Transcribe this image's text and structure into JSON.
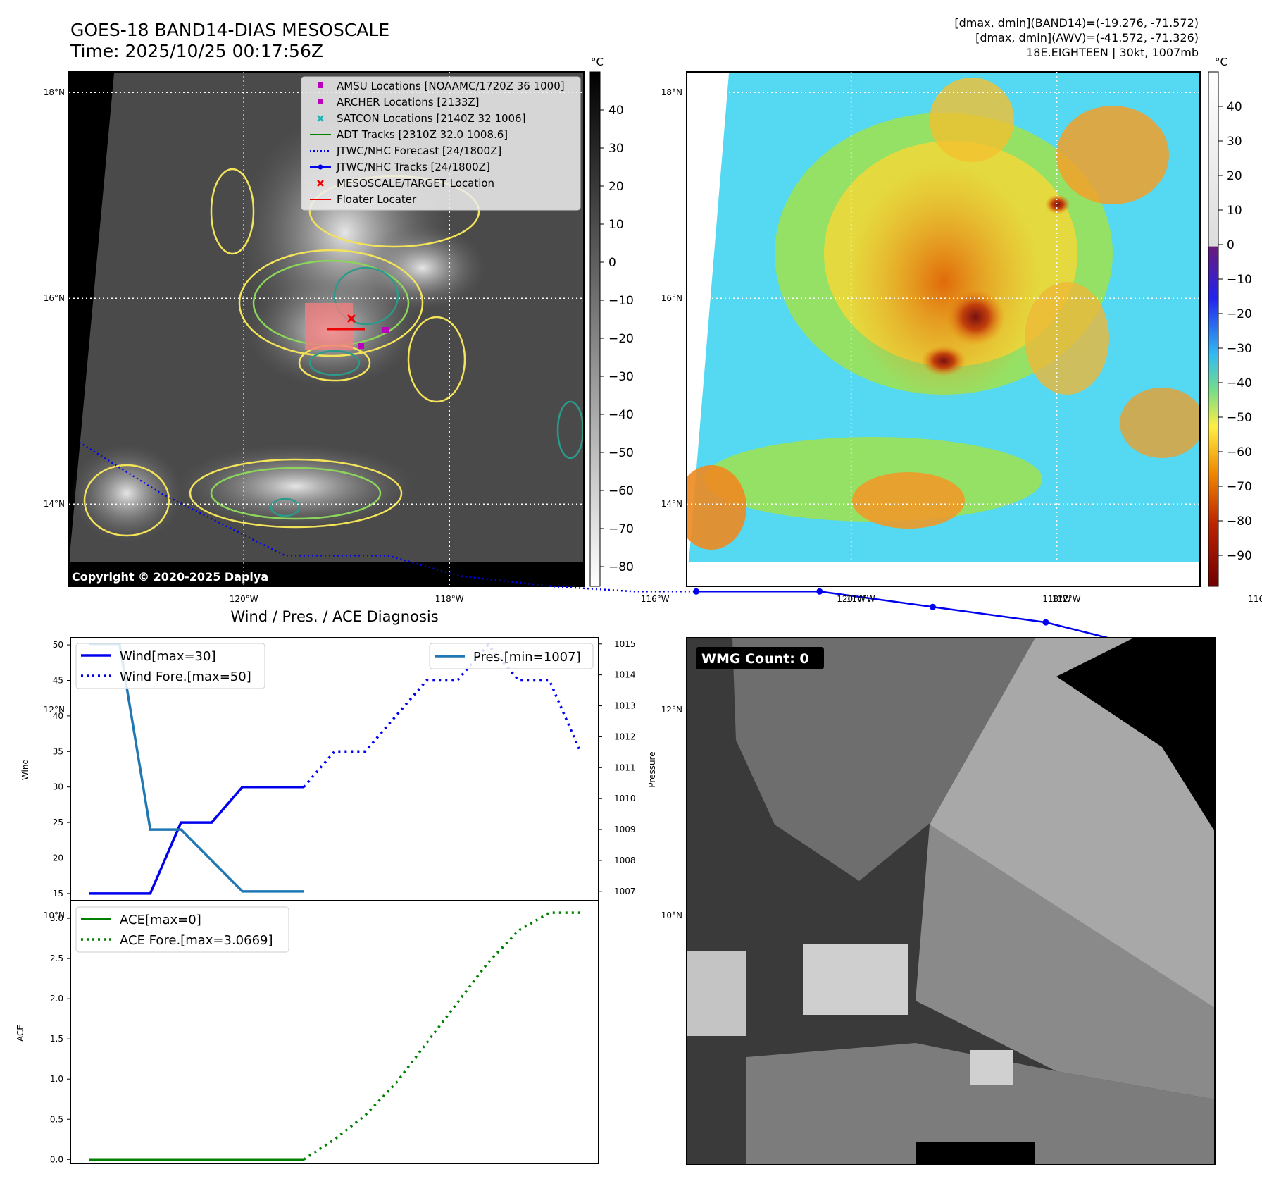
{
  "title": {
    "line1": "GOES-18 BAND14-DIAS MESOSCALE",
    "line2": "Time: 2025/10/25 00:17:56Z"
  },
  "info": {
    "line1": "[dmax, dmin](BAND14)=(-19.276, -71.572)",
    "line2": "[dmax, dmin](AWV)=(-41.572, -71.326)",
    "line3": "18E.EIGHTEEN | 30kt, 1007mb"
  },
  "map": {
    "lat_labels": [
      "18°N",
      "16°N",
      "14°N",
      "12°N",
      "10°N"
    ],
    "lon_labels": [
      "120°W",
      "118°W",
      "116°W",
      "114°W",
      "112°W"
    ],
    "copyright": "Copyright © 2020-2025 Dapiya",
    "legend": [
      {
        "label": "AMSU Locations [NOAAMC/1720Z 36 1000]",
        "marker": "square",
        "color": "#bb00bb"
      },
      {
        "label": "ARCHER Locations [2133Z]",
        "marker": "square",
        "color": "#bb00bb"
      },
      {
        "label": "SATCON Locations [2140Z 32 1006]",
        "marker": "x",
        "color": "#17b4b4"
      },
      {
        "label": "ADT Tracks [2310Z 32.0 1008.6]",
        "marker": "line",
        "color": "#008000"
      },
      {
        "label": "JTWC/NHC Forecast [24/1800Z]",
        "marker": "dotted",
        "color": "#0000ee"
      },
      {
        "label": "JTWC/NHC Tracks [24/1800Z]",
        "marker": "line-dot",
        "color": "#0000ee"
      },
      {
        "label": "MESOSCALE/TARGET Location",
        "marker": "x",
        "color": "#ee0000"
      },
      {
        "label": "Floater Locater",
        "marker": "line",
        "color": "#ee0000"
      }
    ],
    "track_lonlat": [
      [
        -115.6,
        13.15
      ],
      [
        -114.4,
        13.15
      ],
      [
        -113.3,
        13.0
      ],
      [
        -112.2,
        12.85
      ],
      [
        -111.6,
        12.7
      ]
    ],
    "forecast_lonlat": [
      [
        -121.6,
        14.6
      ],
      [
        -120.8,
        14.1
      ],
      [
        -119.6,
        13.5
      ],
      [
        -118.6,
        13.5
      ],
      [
        -117.9,
        13.3
      ],
      [
        -117.0,
        13.2
      ],
      [
        -116.2,
        13.15
      ],
      [
        -115.6,
        13.15
      ]
    ]
  },
  "colorbar_gray": {
    "unit": "°C",
    "ticks": [
      "40",
      "30",
      "20",
      "10",
      "0",
      "−10",
      "−20",
      "−30",
      "−40",
      "−50",
      "−60",
      "−70",
      "−80"
    ]
  },
  "colorbar_color": {
    "unit": "°C",
    "ticks": [
      "40",
      "30",
      "20",
      "10",
      "0",
      "−10",
      "−20",
      "−30",
      "−40",
      "−50",
      "−60",
      "−70",
      "−80",
      "−90"
    ]
  },
  "chart_data": [
    {
      "type": "line",
      "title": "Wind / Pres. / ACE Diagnosis",
      "ylabel": "Wind",
      "ylabel_right": "Pressure",
      "ylim": [
        14,
        51
      ],
      "ylim_right": [
        1006.7,
        1015.2
      ],
      "yticks": [
        15,
        20,
        25,
        30,
        35,
        40,
        45,
        50
      ],
      "yticks_right": [
        1007,
        1008,
        1009,
        1010,
        1011,
        1012,
        1013,
        1014,
        1015
      ],
      "x": [
        0,
        1,
        2,
        3,
        4,
        5,
        6,
        7,
        8,
        9,
        10,
        11,
        12,
        13,
        14,
        15
      ],
      "series": [
        {
          "name": "Wind[max=30]",
          "color": "#0000ee",
          "style": "solid",
          "x": [
            0,
            2,
            3,
            4,
            5,
            6,
            7
          ],
          "values": [
            15,
            15,
            25,
            25,
            30,
            30,
            30
          ]
        },
        {
          "name": "Wind Fore.[max=50]",
          "color": "#0000ee",
          "style": "dotted",
          "x": [
            7,
            8,
            9,
            10,
            11,
            12,
            13,
            14,
            15,
            16
          ],
          "values": [
            30,
            35,
            35,
            40,
            45,
            45,
            50,
            45,
            45,
            35
          ]
        },
        {
          "name": "Pres.[min=1007]",
          "color": "#1f77b4",
          "style": "solid",
          "axis": "right",
          "x": [
            0,
            1,
            2,
            3,
            4,
            5,
            6,
            7
          ],
          "values": [
            1015,
            1015,
            1009,
            1009,
            1008,
            1007,
            1007,
            1007
          ]
        }
      ]
    },
    {
      "type": "line",
      "ylabel": "ACE",
      "ylim": [
        -0.05,
        3.22
      ],
      "yticks": [
        "0.0",
        "0.5",
        "1.0",
        "1.5",
        "2.0",
        "2.5",
        "3.0"
      ],
      "series": [
        {
          "name": "ACE[max=0]",
          "color": "#008000",
          "style": "solid",
          "x": [
            0,
            1,
            2,
            3,
            4,
            5,
            6,
            7
          ],
          "values": [
            0,
            0,
            0,
            0,
            0,
            0,
            0,
            0
          ]
        },
        {
          "name": "ACE Fore.[max=3.0669]",
          "color": "#008000",
          "style": "dotted",
          "x": [
            7,
            8,
            9,
            10,
            11,
            12,
            13,
            14,
            15,
            16
          ],
          "values": [
            0,
            0.25,
            0.55,
            0.95,
            1.45,
            1.95,
            2.45,
            2.85,
            3.07,
            3.07
          ]
        }
      ]
    }
  ],
  "wmg": {
    "label": "WMG Count: 0"
  }
}
